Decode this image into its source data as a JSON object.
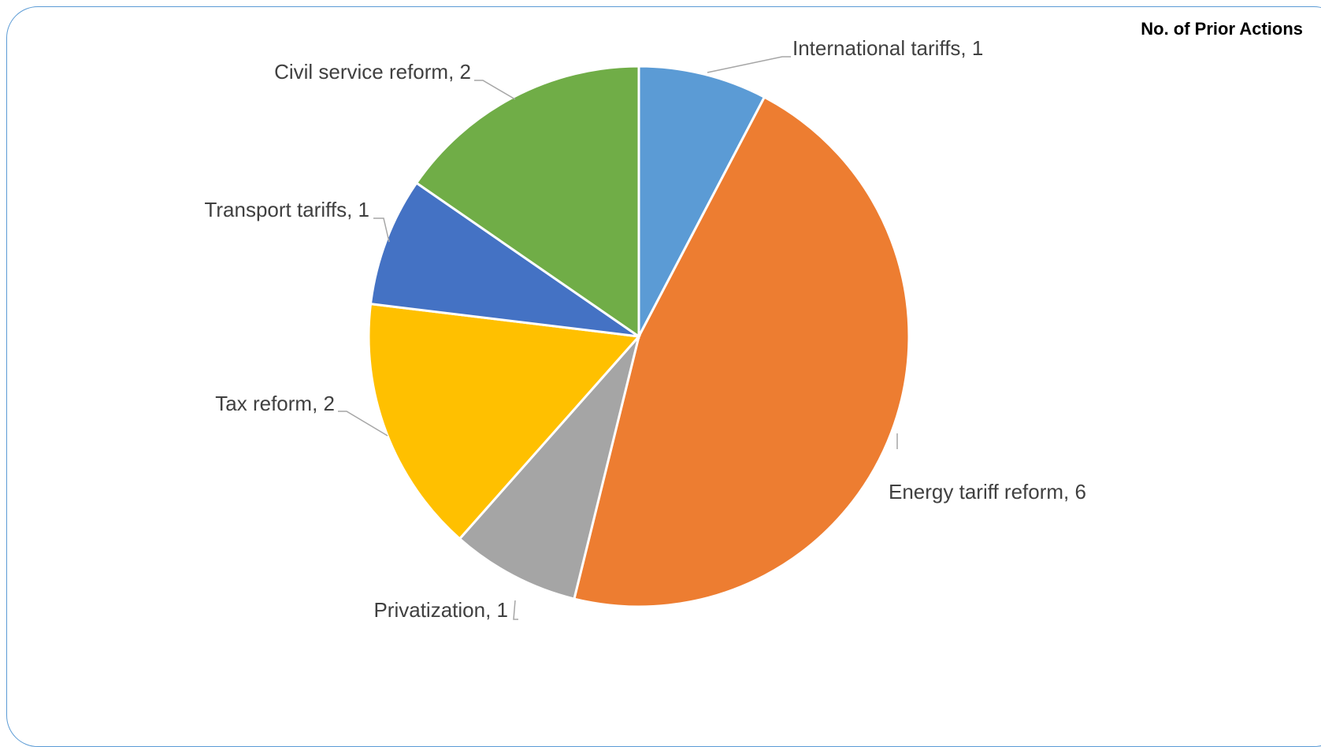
{
  "chart_data": {
    "type": "pie",
    "title": "No. of Prior Actions",
    "slices": [
      {
        "label": "International tariffs",
        "value": 1,
        "color": "#5b9bd5",
        "display": "International tariffs, 1"
      },
      {
        "label": "Energy tariff reform",
        "value": 6,
        "color": "#ed7d31",
        "display": "Energy tariff reform, 6"
      },
      {
        "label": "Privatization",
        "value": 1,
        "color": "#a5a5a5",
        "display": "Privatization, 1"
      },
      {
        "label": "Tax reform",
        "value": 2,
        "color": "#ffc000",
        "display": "Tax reform, 2"
      },
      {
        "label": "Transport tariffs",
        "value": 1,
        "color": "#4472c4",
        "display": "Transport tariffs, 1"
      },
      {
        "label": "Civil service reform",
        "value": 2,
        "color": "#70ad47",
        "display": "Civil service reform, 2"
      }
    ]
  }
}
